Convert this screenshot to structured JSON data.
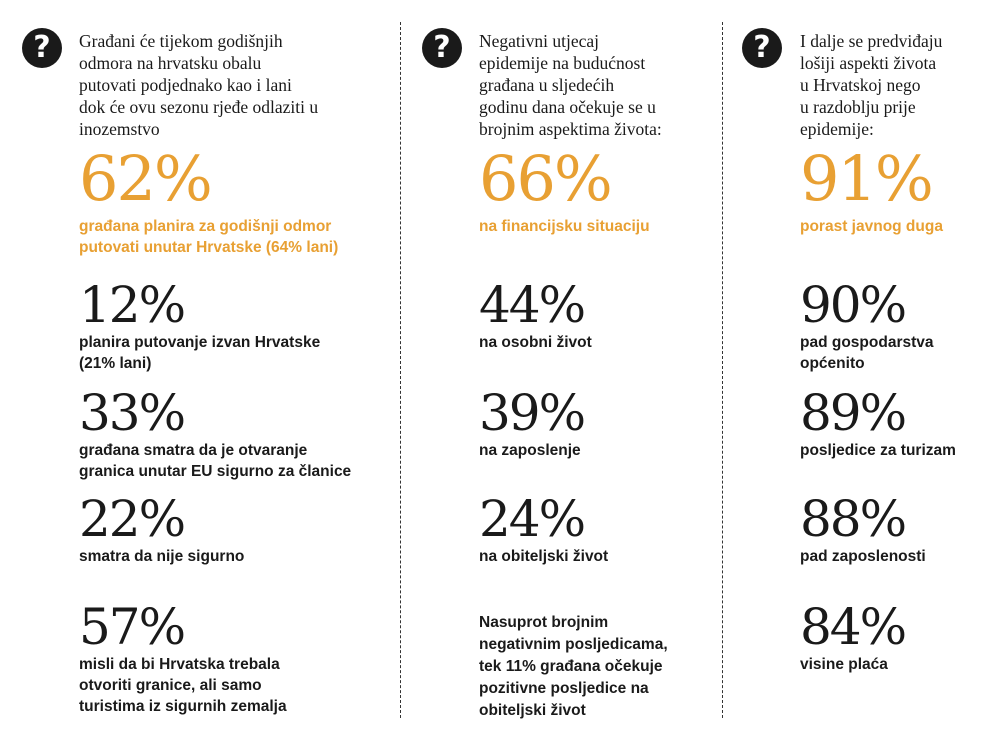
{
  "icon_glyph": "?",
  "colors": {
    "accent": "#e8a033",
    "text": "#1a1a1a"
  },
  "columns": [
    {
      "intro": "Građani će tijekom godišnjih\nodmora na hrvatsku obalu\nputovati podjednako kao i lani\ndok će ovu sezonu rjeđe odlaziti u\ninozemstvo",
      "stats": [
        {
          "value": "62%",
          "label": "građana planira za godišnji odmor\nputovati unutar Hrvatske (64% lani)"
        },
        {
          "value": "12%",
          "label": "planira putovanje izvan Hrvatske\n(21% lani)"
        },
        {
          "value": "33%",
          "label": "građana smatra da je otvaranje\ngranica unutar EU sigurno za članice"
        },
        {
          "value": "22%",
          "label": "smatra da nije sigurno"
        },
        {
          "value": "57%",
          "label": "misli da bi Hrvatska trebala\notvoriti granice, ali samo\nturistima iz sigurnih zemalja"
        }
      ]
    },
    {
      "intro": "Negativni utjecaj\nepidemije na budućnost\ngrađana u sljedećih\ngodinu dana očekuje se u\nbrojnim aspektima života:",
      "stats": [
        {
          "value": "66%",
          "label": "na financijsku situaciju"
        },
        {
          "value": "44%",
          "label": "na osobni život"
        },
        {
          "value": "39%",
          "label": "na zaposlenje"
        },
        {
          "value": "24%",
          "label": "na obiteljski život"
        }
      ],
      "note": "Nasuprot brojnim\nnegativnim posljedicama,\ntek 11% građana očekuje\npozitivne posljedice na\nobiteljski život"
    },
    {
      "intro": "I dalje se predviđaju\nlošiji aspekti života\nu Hrvatskoj nego\nu razdoblju prije\nepidemije:",
      "stats": [
        {
          "value": "91%",
          "label": "porast javnog duga"
        },
        {
          "value": "90%",
          "label": "pad gospodarstva\nopćenito"
        },
        {
          "value": "89%",
          "label": "posljedice za turizam"
        },
        {
          "value": "88%",
          "label": "pad zaposlenosti"
        },
        {
          "value": "84%",
          "label": "visine plaća"
        }
      ]
    }
  ]
}
